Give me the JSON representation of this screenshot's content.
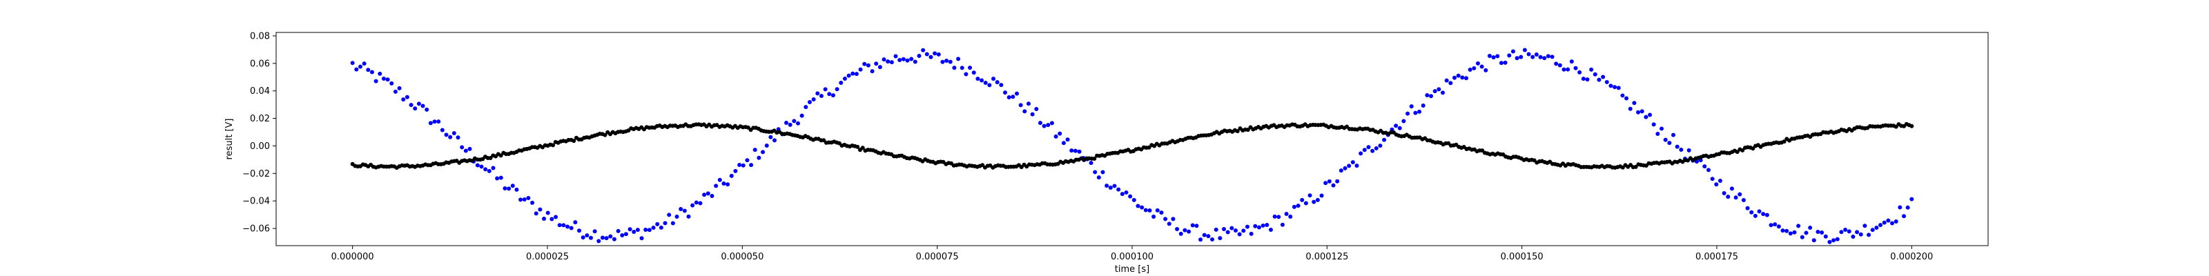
{
  "chart_data": {
    "type": "scatter",
    "xlabel": "time [s]",
    "ylabel": "result [V]",
    "xlim": [
      -9.8e-06,
      0.0002098
    ],
    "ylim": [
      -0.0725,
      0.0825
    ],
    "grid": false,
    "x_ticks": [
      0,
      2.5e-05,
      5e-05,
      7.5e-05,
      0.0001,
      0.000125,
      0.00015,
      0.000175,
      0.0002
    ],
    "x_tick_labels": [
      "0.000000",
      "0.000025",
      "0.000050",
      "0.000075",
      "0.000100",
      "0.000125",
      "0.000150",
      "0.000175",
      "0.000200"
    ],
    "y_ticks": [
      -0.06,
      -0.04,
      -0.02,
      0.0,
      0.02,
      0.04,
      0.06,
      0.08
    ],
    "y_tick_labels": [
      "−0.06",
      "−0.04",
      "−0.02",
      "0.00",
      "0.02",
      "0.04",
      "0.06",
      "0.08"
    ],
    "series": [
      {
        "color": "#0000ff",
        "x_range": [
          0,
          0.0002
        ],
        "n_points": 400,
        "waveform": "sinusoid",
        "amplitude": 0.065,
        "period": 7.8e-05,
        "peak_times": [
          7.25e-05,
          0.0001505
        ],
        "trough_times": [
          3.35e-05,
          0.0001115,
          0.0001895
        ],
        "noise_band": 0.005
      },
      {
        "color": "#000000",
        "x_range": [
          0,
          0.0002
        ],
        "n_points": 600,
        "waveform": "sinusoid",
        "amplitude": 0.015,
        "period": 7.8e-05,
        "peak_times": [
          4.4e-05,
          0.000122,
          0.0002
        ],
        "trough_times": [
          5e-06,
          8.3e-05,
          0.000161
        ],
        "noise_band": 0.001
      }
    ]
  }
}
